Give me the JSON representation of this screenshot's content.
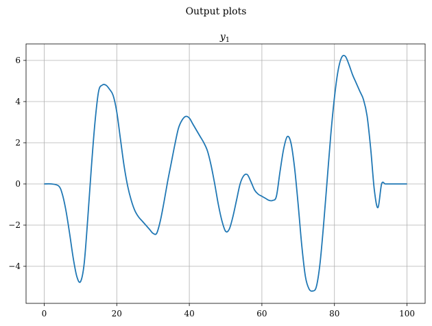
{
  "figure": {
    "suptitle": "Output plots"
  },
  "chart_data": {
    "type": "line",
    "title": "y",
    "title_subscript": "1",
    "xlabel": "",
    "ylabel": "",
    "xlim": [
      -5,
      105
    ],
    "ylim": [
      -5.8,
      6.8
    ],
    "xticks": [
      0,
      20,
      40,
      60,
      80,
      100
    ],
    "yticks": [
      -4,
      -2,
      0,
      2,
      4,
      6
    ],
    "xtick_labels": [
      "0",
      "20",
      "40",
      "60",
      "80",
      "100"
    ],
    "ytick_labels": [
      "−4",
      "−2",
      "0",
      "2",
      "4",
      "6"
    ],
    "grid": true,
    "legend": "none",
    "series": [
      {
        "color": "#1f77b4",
        "x": [
          0,
          2,
          4,
          5,
          6,
          7,
          8,
          9,
          10,
          11,
          12,
          13,
          14,
          15,
          16,
          17,
          18,
          19,
          20,
          21,
          22,
          23,
          24,
          25,
          26,
          27,
          28,
          29,
          30,
          31,
          32,
          33,
          34,
          35,
          36,
          37,
          38,
          39,
          40,
          41,
          42,
          43,
          44,
          45,
          46,
          47,
          48,
          49,
          50,
          51,
          52,
          53,
          54,
          55,
          56,
          57,
          58,
          59,
          60,
          61,
          62,
          63,
          64,
          65,
          66,
          67,
          68,
          69,
          70,
          71,
          72,
          73,
          74,
          75,
          76,
          77,
          78,
          79,
          80,
          81,
          82,
          83,
          84,
          85,
          86,
          87,
          88,
          89,
          90,
          91,
          92,
          93,
          94,
          95,
          96,
          97,
          98,
          99,
          100
        ],
        "y": [
          0.0,
          0.0,
          -0.1,
          -0.5,
          -1.3,
          -2.4,
          -3.6,
          -4.5,
          -4.75,
          -3.9,
          -1.7,
          0.8,
          3.0,
          4.5,
          4.8,
          4.8,
          4.6,
          4.3,
          3.5,
          2.2,
          0.9,
          -0.1,
          -0.8,
          -1.3,
          -1.6,
          -1.8,
          -2.0,
          -2.2,
          -2.4,
          -2.4,
          -1.8,
          -0.9,
          0.1,
          1.0,
          1.9,
          2.7,
          3.1,
          3.28,
          3.2,
          2.9,
          2.6,
          2.3,
          2.0,
          1.6,
          0.9,
          0.0,
          -1.0,
          -1.8,
          -2.3,
          -2.2,
          -1.6,
          -0.8,
          0.0,
          0.4,
          0.45,
          0.1,
          -0.3,
          -0.5,
          -0.6,
          -0.7,
          -0.8,
          -0.8,
          -0.6,
          0.6,
          1.7,
          2.3,
          2.0,
          0.8,
          -1.0,
          -3.0,
          -4.5,
          -5.1,
          -5.2,
          -5.0,
          -3.9,
          -2.0,
          0.2,
          2.4,
          4.2,
          5.5,
          6.15,
          6.2,
          5.8,
          5.3,
          4.9,
          4.5,
          4.1,
          3.3,
          1.7,
          -0.3,
          -1.15,
          0.0,
          0.0,
          0.0,
          0.0,
          0.0,
          0.0,
          0.0,
          0.0
        ]
      }
    ]
  }
}
